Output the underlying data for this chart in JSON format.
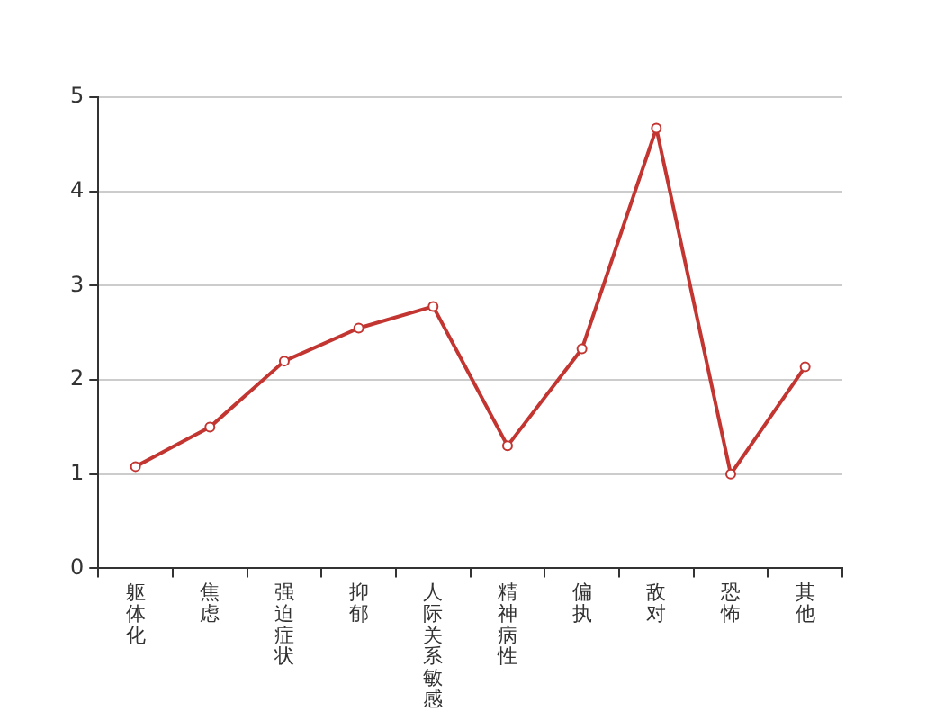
{
  "chart_data": {
    "type": "line",
    "categories": [
      "躯体化",
      "焦虑",
      "强迫症状",
      "抑郁",
      "人际关系敏感",
      "精神病性",
      "偏执",
      "敌对",
      "恐怖",
      "其他"
    ],
    "series": [
      {
        "color": "#c23531",
        "values": [
          1.08,
          1.5,
          2.2,
          2.55,
          2.78,
          1.3,
          2.33,
          4.67,
          1.0,
          2.14
        ]
      }
    ],
    "ylim": [
      0,
      5
    ],
    "yticks": [
      0,
      1,
      2,
      3,
      4,
      5
    ],
    "grid": "y",
    "marker": "circle",
    "line_style": "solid"
  }
}
